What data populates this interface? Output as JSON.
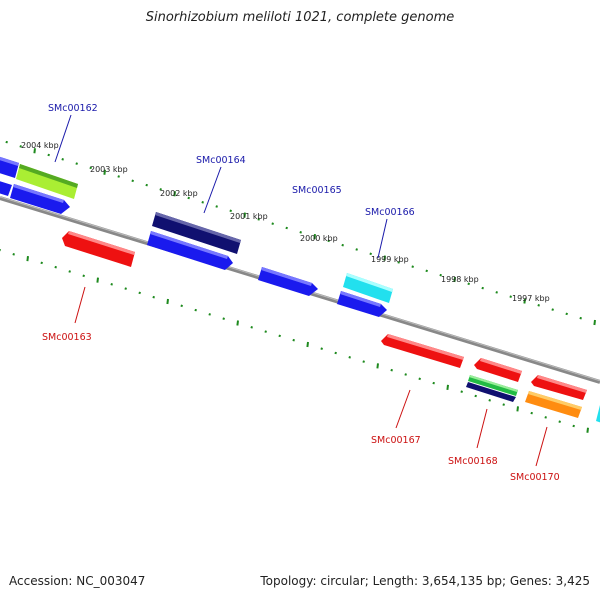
{
  "title": "Sinorhizobium meliloti 1021, complete genome",
  "footer": {
    "accession": "Accession: NC_003047",
    "summary": "Topology: circular; Length: 3,654,135 bp; Genes: 3,425"
  },
  "colors": {
    "blue": "#1a1aee",
    "navy": "#101070",
    "red": "#ee1111",
    "cyan": "#22e0ee",
    "green": "#22bb44",
    "lime": "#aaee33",
    "orange": "#ff8c10",
    "tick": "#1e8a1e",
    "backbone": "#888888",
    "label_blue": "#1a1aaa",
    "label_red": "#cc1111"
  },
  "scale_labels": [
    "2004 kbp",
    "2003 kbp",
    "2002 kbp",
    "2001 kbp",
    "2000 kbp",
    "1999 kbp",
    "1998 kbp",
    "1997 kbp"
  ],
  "gene_labels": {
    "top": [
      "SMc00162",
      "SMc00164",
      "SMc00165",
      "SMc00166"
    ],
    "bottom": [
      "SMc00163",
      "SMc00167",
      "SMc00168",
      "SMc00170"
    ]
  }
}
